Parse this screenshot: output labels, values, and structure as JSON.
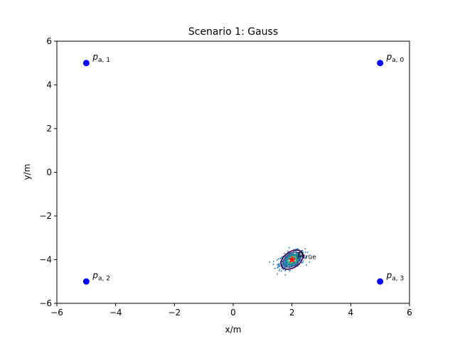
{
  "chart_data": {
    "type": "scatter",
    "title": "Scenario 1: Gauss",
    "xlabel": "x/m",
    "ylabel": "y/m",
    "xlim": [
      -6,
      6
    ],
    "ylim": [
      -6,
      6
    ],
    "xticks": [
      -6,
      -4,
      -2,
      0,
      2,
      4,
      6
    ],
    "yticks": [
      -6,
      -4,
      -2,
      0,
      2,
      4,
      6
    ],
    "xtick_labels": [
      "−6",
      "−4",
      "−2",
      "0",
      "2",
      "4",
      "6"
    ],
    "ytick_labels": [
      "−6",
      "−4",
      "−2",
      "0",
      "2",
      "4",
      "6"
    ],
    "grid": false,
    "anchors": {
      "color": "#0000ff",
      "points": [
        {
          "base": "p",
          "sub": "a, 0",
          "x": 5,
          "y": 5
        },
        {
          "base": "p",
          "sub": "a, 1",
          "x": -5,
          "y": 5
        },
        {
          "base": "p",
          "sub": "a, 2",
          "x": -5,
          "y": -5
        },
        {
          "base": "p",
          "sub": "a, 3",
          "x": 5,
          "y": -5
        }
      ]
    },
    "true_position": {
      "base": "p",
      "sub": "true",
      "x": 2,
      "y": -4,
      "color": "#ff0000"
    },
    "samples": {
      "center": [
        2,
        -4
      ],
      "sigma_x": 0.22,
      "sigma_y": 0.2,
      "count": 500,
      "color": "#1f77b4"
    },
    "density_contours": {
      "colors": [
        "#440154",
        "#3b528b",
        "#21918c",
        "#5ec962",
        "#fde725"
      ],
      "radii_x": [
        0.42,
        0.33,
        0.24,
        0.15,
        0.07
      ],
      "radii_y": [
        0.36,
        0.28,
        0.2,
        0.12,
        0.06
      ],
      "rotation_deg": -35
    }
  }
}
